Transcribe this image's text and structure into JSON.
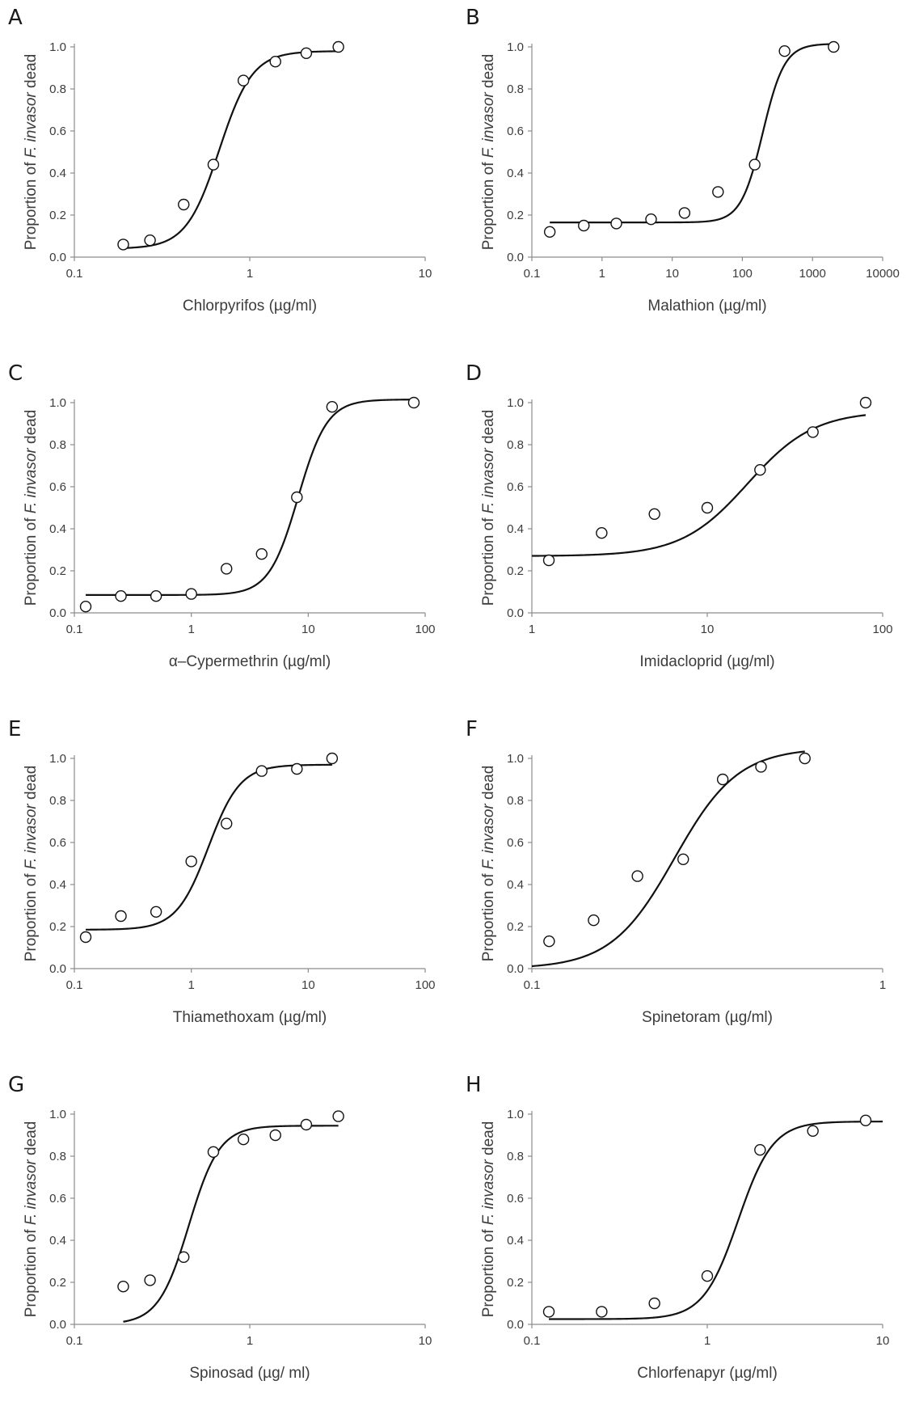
{
  "colors": {
    "axis": "#8c8c8c",
    "curve": "#111111",
    "marker": "#111111",
    "text": "#3c3c3c"
  },
  "chart_data": [
    {
      "panel": "A",
      "type": "scatter",
      "fit": "sigmoid",
      "xlabel": "Chlorpyrifos (µg/ml)",
      "ylabel": "Proportion of F. invasor dead",
      "xscale": "log",
      "xlim": [
        0.1,
        10
      ],
      "ylim": [
        0,
        1.0
      ],
      "xticks": [
        0.1,
        1,
        10
      ],
      "xtick_labels": [
        "0.1",
        "1",
        "10"
      ],
      "yticks": [
        0,
        0.2,
        0.4,
        0.6,
        0.8,
        1.0
      ],
      "ytick_labels": [
        "0.0",
        "0.2",
        "0.4",
        "0.6",
        "0.8",
        "1.0"
      ],
      "points": [
        [
          0.19,
          0.06
        ],
        [
          0.27,
          0.08
        ],
        [
          0.42,
          0.25
        ],
        [
          0.62,
          0.44
        ],
        [
          0.92,
          0.84
        ],
        [
          1.4,
          0.93
        ],
        [
          2.1,
          0.97
        ],
        [
          3.2,
          1.0
        ]
      ],
      "fit_params": {
        "min": 0.04,
        "max": 0.98,
        "x50": 0.67,
        "slope": 4.6,
        "x_range": [
          0.19,
          3.2
        ]
      }
    },
    {
      "panel": "B",
      "type": "scatter",
      "fit": "sigmoid",
      "xlabel": "Malathion (µg/ml)",
      "ylabel": "Proportion of F. invasor dead",
      "xscale": "log",
      "xlim": [
        0.1,
        10000
      ],
      "ylim": [
        0,
        1.0
      ],
      "xticks": [
        0.1,
        1,
        10,
        100,
        1000,
        10000
      ],
      "xtick_labels": [
        "0.1",
        "1",
        "10",
        "100",
        "1000",
        "10000"
      ],
      "yticks": [
        0,
        0.2,
        0.4,
        0.6,
        0.8,
        1.0
      ],
      "ytick_labels": [
        "0.0",
        "0.2",
        "0.4",
        "0.6",
        "0.8",
        "1.0"
      ],
      "points": [
        [
          0.18,
          0.12
        ],
        [
          0.55,
          0.15
        ],
        [
          1.6,
          0.16
        ],
        [
          5,
          0.18
        ],
        [
          15,
          0.21
        ],
        [
          45,
          0.31
        ],
        [
          150,
          0.44
        ],
        [
          400,
          0.98
        ],
        [
          2000,
          1.0
        ]
      ],
      "fit_params": {
        "min": 0.165,
        "max": 1.015,
        "x50": 195,
        "slope": 2.8,
        "x_range": [
          0.18,
          2000
        ]
      }
    },
    {
      "panel": "C",
      "type": "scatter",
      "fit": "sigmoid",
      "xlabel": "α–Cypermethrin (µg/ml)",
      "ylabel": "Proportion of F. invasor dead",
      "xscale": "log",
      "xlim": [
        0.1,
        100
      ],
      "ylim": [
        0,
        1.0
      ],
      "xticks": [
        0.1,
        1,
        10,
        100
      ],
      "xtick_labels": [
        "0.1",
        "1",
        "10",
        "100"
      ],
      "yticks": [
        0,
        0.2,
        0.4,
        0.6,
        0.8,
        1.0
      ],
      "ytick_labels": [
        "0.0",
        "0.2",
        "0.4",
        "0.6",
        "0.8",
        "1.0"
      ],
      "points": [
        [
          0.125,
          0.03
        ],
        [
          0.25,
          0.08
        ],
        [
          0.5,
          0.08
        ],
        [
          1,
          0.09
        ],
        [
          2,
          0.21
        ],
        [
          4,
          0.28
        ],
        [
          8,
          0.55
        ],
        [
          16,
          0.98
        ],
        [
          80,
          1.0
        ]
      ],
      "fit_params": {
        "min": 0.085,
        "max": 1.015,
        "x50": 8.2,
        "slope": 3.5,
        "x_range": [
          0.125,
          80
        ]
      }
    },
    {
      "panel": "D",
      "type": "scatter",
      "fit": "sigmoid",
      "xlabel": "Imidacloprid (µg/ml)",
      "ylabel": "Proportion of F. invasor dead",
      "xscale": "log",
      "xlim": [
        1,
        100
      ],
      "ylim": [
        0,
        1.0
      ],
      "xticks": [
        1,
        10,
        100
      ],
      "xtick_labels": [
        "1",
        "10",
        "100"
      ],
      "yticks": [
        0,
        0.2,
        0.4,
        0.6,
        0.8,
        1.0
      ],
      "ytick_labels": [
        "0.0",
        "0.2",
        "0.4",
        "0.6",
        "0.8",
        "1.0"
      ],
      "points": [
        [
          1.25,
          0.25
        ],
        [
          2.5,
          0.38
        ],
        [
          5,
          0.47
        ],
        [
          10,
          0.5
        ],
        [
          20,
          0.68
        ],
        [
          40,
          0.86
        ],
        [
          80,
          1.0
        ]
      ],
      "fit_params": {
        "min": 0.27,
        "max": 0.96,
        "x50": 17,
        "slope": 2.3,
        "x_range": [
          1,
          80
        ]
      }
    },
    {
      "panel": "E",
      "type": "scatter",
      "fit": "sigmoid",
      "xlabel": "Thiamethoxam (µg/ml)",
      "ylabel": "Proportion of F. invasor dead",
      "xscale": "log",
      "xlim": [
        0.1,
        100
      ],
      "ylim": [
        0,
        1.0
      ],
      "xticks": [
        0.1,
        1,
        10,
        100
      ],
      "xtick_labels": [
        "0.1",
        "1",
        "10",
        "100"
      ],
      "yticks": [
        0,
        0.2,
        0.4,
        0.6,
        0.8,
        1.0
      ],
      "ytick_labels": [
        "0.0",
        "0.2",
        "0.4",
        "0.6",
        "0.8",
        "1.0"
      ],
      "points": [
        [
          0.125,
          0.15
        ],
        [
          0.25,
          0.25
        ],
        [
          0.5,
          0.27
        ],
        [
          1,
          0.51
        ],
        [
          2,
          0.69
        ],
        [
          4,
          0.94
        ],
        [
          8,
          0.95
        ],
        [
          16,
          1.0
        ]
      ],
      "fit_params": {
        "min": 0.185,
        "max": 0.97,
        "x50": 1.4,
        "slope": 3.2,
        "x_range": [
          0.125,
          16
        ]
      }
    },
    {
      "panel": "F",
      "type": "scatter",
      "fit": "sigmoid",
      "xlabel": "Spinetoram (µg/ml)",
      "ylabel": "Proportion of F. invasor dead",
      "xscale": "log",
      "xlim": [
        0.1,
        1
      ],
      "ylim": [
        0,
        1.0
      ],
      "xticks": [
        0.1,
        1
      ],
      "xtick_labels": [
        "0.1",
        "1"
      ],
      "yticks": [
        0,
        0.2,
        0.4,
        0.6,
        0.8,
        1.0
      ],
      "ytick_labels": [
        "0.0",
        "0.2",
        "0.4",
        "0.6",
        "0.8",
        "1.0"
      ],
      "points": [
        [
          0.112,
          0.13
        ],
        [
          0.15,
          0.23
        ],
        [
          0.2,
          0.44
        ],
        [
          0.27,
          0.52
        ],
        [
          0.35,
          0.9
        ],
        [
          0.45,
          0.96
        ],
        [
          0.6,
          1.0
        ]
      ],
      "fit_params": {
        "min": 0.0,
        "max": 1.05,
        "x50": 0.255,
        "slope": 4.8,
        "x_range": [
          0.1,
          0.6
        ]
      }
    },
    {
      "panel": "G",
      "type": "scatter",
      "fit": "sigmoid",
      "xlabel": "Spinosad (µg/ ml)",
      "ylabel": "Proportion of F. invasor dead",
      "xscale": "log",
      "xlim": [
        0.1,
        10
      ],
      "ylim": [
        0,
        1.0
      ],
      "xticks": [
        0.1,
        1,
        10
      ],
      "xtick_labels": [
        "0.1",
        "1",
        "10"
      ],
      "yticks": [
        0,
        0.2,
        0.4,
        0.6,
        0.8,
        1.0
      ],
      "ytick_labels": [
        "0.0",
        "0.2",
        "0.4",
        "0.6",
        "0.8",
        "1.0"
      ],
      "points": [
        [
          0.19,
          0.18
        ],
        [
          0.27,
          0.21
        ],
        [
          0.42,
          0.32
        ],
        [
          0.62,
          0.82
        ],
        [
          0.92,
          0.88
        ],
        [
          1.4,
          0.9
        ],
        [
          2.1,
          0.95
        ],
        [
          3.2,
          0.99
        ]
      ],
      "fit_params": {
        "min": 0.0,
        "max": 0.945,
        "x50": 0.45,
        "slope": 5.0,
        "x_range": [
          0.19,
          3.2
        ]
      }
    },
    {
      "panel": "H",
      "type": "scatter",
      "fit": "sigmoid",
      "xlabel": "Chlorfenapyr (µg/ml)",
      "ylabel": "Proportion of F. invasor dead",
      "xscale": "log",
      "xlim": [
        0.1,
        10
      ],
      "ylim": [
        0,
        1.0
      ],
      "xticks": [
        0.1,
        1,
        10
      ],
      "xtick_labels": [
        "0.1",
        "1",
        "10"
      ],
      "yticks": [
        0,
        0.2,
        0.4,
        0.6,
        0.8,
        1.0
      ],
      "ytick_labels": [
        "0.0",
        "0.2",
        "0.4",
        "0.6",
        "0.8",
        "1.0"
      ],
      "points": [
        [
          0.125,
          0.06
        ],
        [
          0.25,
          0.06
        ],
        [
          0.5,
          0.1
        ],
        [
          1,
          0.23
        ],
        [
          2,
          0.83
        ],
        [
          4,
          0.92
        ],
        [
          8,
          0.97
        ]
      ],
      "fit_params": {
        "min": 0.025,
        "max": 0.965,
        "x50": 1.5,
        "slope": 4.4,
        "x_range": [
          0.125,
          10
        ]
      }
    }
  ]
}
